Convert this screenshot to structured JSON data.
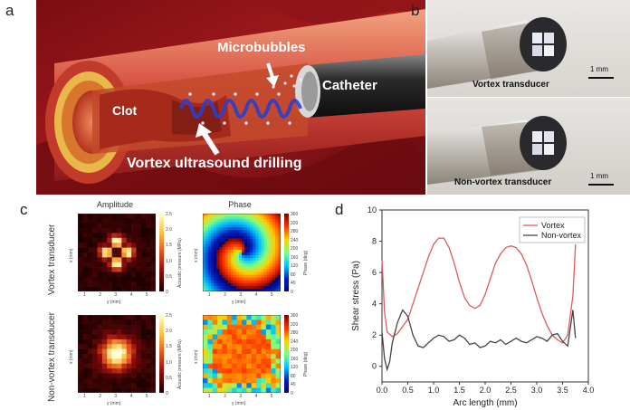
{
  "panel_a": {
    "letter": "a",
    "labels": {
      "clot": "Clot",
      "microbubbles": "Microbubbles",
      "catheter": "Catheter",
      "drilling": "Vortex ultrasound drilling"
    }
  },
  "panel_b": {
    "letter": "b",
    "top_caption": "Vortex transducer",
    "bottom_caption": "Non-vortex transducer",
    "scale_top": "1 mm",
    "scale_bottom": "1 mm"
  },
  "panel_c": {
    "letter": "c",
    "col_amplitude": "Amplitude",
    "col_phase": "Phase",
    "row_vortex": "Vortex transducer",
    "row_nonvortex": "Non-vortex transducer",
    "x_axis": "y (mm)",
    "y_axis": "x (mm)",
    "amp_colorbar_label": "Acoustic pressure (MPa)",
    "phase_colorbar_label": "Phase (deg)",
    "amp_ticks": [
      "2.5",
      "2.0",
      "1.5",
      "1.0",
      "0.5",
      "0"
    ],
    "phase_ticks": [
      "360",
      "320",
      "280",
      "240",
      "200",
      "160",
      "120",
      "80",
      "40",
      "0"
    ],
    "axis_ticks": [
      "1",
      "2",
      "3",
      "4",
      "5"
    ]
  },
  "chart_data": {
    "type": "line",
    "xlabel": "Arc length (mm)",
    "ylabel": "Shear stress (Pa)",
    "xlim": [
      0,
      4.0
    ],
    "ylim": [
      -1,
      10
    ],
    "x_ticks": [
      "0.0",
      "0.5",
      "1.0",
      "1.5",
      "2.0",
      "2.5",
      "3.0",
      "3.5",
      "4.0"
    ],
    "y_ticks": [
      "0",
      "2",
      "4",
      "6",
      "8",
      "10"
    ],
    "grid": false,
    "legend_position": "top-right",
    "series": [
      {
        "name": "Vortex",
        "color": "#e05a5a",
        "x": [
          0.0,
          0.05,
          0.1,
          0.2,
          0.3,
          0.5,
          0.7,
          0.9,
          1.0,
          1.1,
          1.2,
          1.3,
          1.4,
          1.5,
          1.6,
          1.7,
          1.8,
          1.9,
          2.0,
          2.1,
          2.2,
          2.3,
          2.4,
          2.5,
          2.6,
          2.7,
          2.8,
          2.9,
          3.0,
          3.1,
          3.2,
          3.3,
          3.4,
          3.5,
          3.6,
          3.7,
          3.75
        ],
        "values": [
          6.8,
          3.5,
          2.2,
          1.9,
          2.1,
          3.0,
          5.0,
          7.0,
          7.8,
          8.2,
          8.2,
          7.6,
          6.6,
          5.4,
          4.4,
          3.9,
          3.7,
          3.9,
          4.6,
          5.6,
          6.6,
          7.2,
          7.6,
          7.7,
          7.6,
          7.2,
          6.5,
          5.5,
          4.4,
          3.4,
          2.6,
          2.0,
          1.7,
          1.5,
          2.0,
          4.5,
          7.8
        ]
      },
      {
        "name": "Non-vortex",
        "color": "#444444",
        "x": [
          0.0,
          0.05,
          0.1,
          0.15,
          0.2,
          0.3,
          0.4,
          0.5,
          0.6,
          0.7,
          0.8,
          0.9,
          1.0,
          1.1,
          1.2,
          1.3,
          1.4,
          1.5,
          1.6,
          1.7,
          1.8,
          1.9,
          2.0,
          2.1,
          2.2,
          2.3,
          2.4,
          2.5,
          2.6,
          2.7,
          2.8,
          2.9,
          3.0,
          3.1,
          3.2,
          3.3,
          3.4,
          3.5,
          3.6,
          3.7,
          3.75
        ],
        "values": [
          2.2,
          0.5,
          -0.2,
          0.3,
          1.5,
          2.8,
          3.6,
          3.2,
          2.0,
          1.3,
          1.2,
          1.5,
          1.8,
          2.0,
          1.9,
          1.6,
          1.7,
          2.0,
          1.8,
          1.4,
          1.5,
          1.2,
          1.3,
          1.6,
          1.5,
          1.7,
          1.4,
          1.6,
          1.8,
          1.6,
          1.5,
          1.7,
          1.9,
          1.8,
          1.6,
          2.0,
          2.1,
          1.6,
          1.3,
          3.6,
          1.8
        ]
      }
    ]
  }
}
